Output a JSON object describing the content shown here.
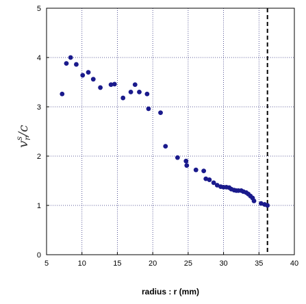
{
  "chart_data": {
    "type": "scatter",
    "title": "",
    "xlabel": "radius : r (mm)",
    "ylabel": {
      "base": "v",
      "sub": "r",
      "sup": "s",
      "suffix": "/c"
    },
    "xlim": [
      5,
      40
    ],
    "ylim": [
      0,
      5
    ],
    "xticks": [
      5,
      10,
      15,
      20,
      25,
      30,
      35,
      40
    ],
    "yticks": [
      0,
      1,
      2,
      3,
      4,
      5
    ],
    "grid": true,
    "legend": "none",
    "marker_color": "#1a1a8c",
    "vline": {
      "x": 36.2,
      "style": "dashed",
      "color": "#000000"
    },
    "points": [
      [
        7.2,
        3.26
      ],
      [
        7.8,
        3.88
      ],
      [
        8.4,
        4.0
      ],
      [
        9.2,
        3.86
      ],
      [
        10.1,
        3.64
      ],
      [
        10.9,
        3.7
      ],
      [
        11.6,
        3.56
      ],
      [
        12.6,
        3.39
      ],
      [
        14.1,
        3.45
      ],
      [
        14.6,
        3.46
      ],
      [
        15.8,
        3.18
      ],
      [
        16.9,
        3.3
      ],
      [
        17.5,
        3.45
      ],
      [
        18.1,
        3.3
      ],
      [
        19.2,
        3.26
      ],
      [
        19.4,
        2.96
      ],
      [
        21.1,
        2.88
      ],
      [
        21.8,
        2.2
      ],
      [
        23.5,
        1.97
      ],
      [
        24.7,
        1.9
      ],
      [
        24.8,
        1.81
      ],
      [
        26.1,
        1.72
      ],
      [
        27.2,
        1.7
      ],
      [
        27.5,
        1.54
      ],
      [
        28.0,
        1.52
      ],
      [
        28.6,
        1.46
      ],
      [
        29.1,
        1.41
      ],
      [
        29.6,
        1.38
      ],
      [
        30.0,
        1.37
      ],
      [
        30.4,
        1.37
      ],
      [
        30.8,
        1.36
      ],
      [
        31.1,
        1.33
      ],
      [
        31.5,
        1.31
      ],
      [
        31.8,
        1.3
      ],
      [
        32.1,
        1.3
      ],
      [
        32.5,
        1.3
      ],
      [
        32.8,
        1.28
      ],
      [
        33.2,
        1.26
      ],
      [
        33.5,
        1.23
      ],
      [
        33.8,
        1.19
      ],
      [
        34.1,
        1.15
      ],
      [
        34.3,
        1.09
      ],
      [
        35.3,
        1.04
      ],
      [
        35.8,
        1.02
      ],
      [
        36.2,
        1.0
      ]
    ]
  }
}
